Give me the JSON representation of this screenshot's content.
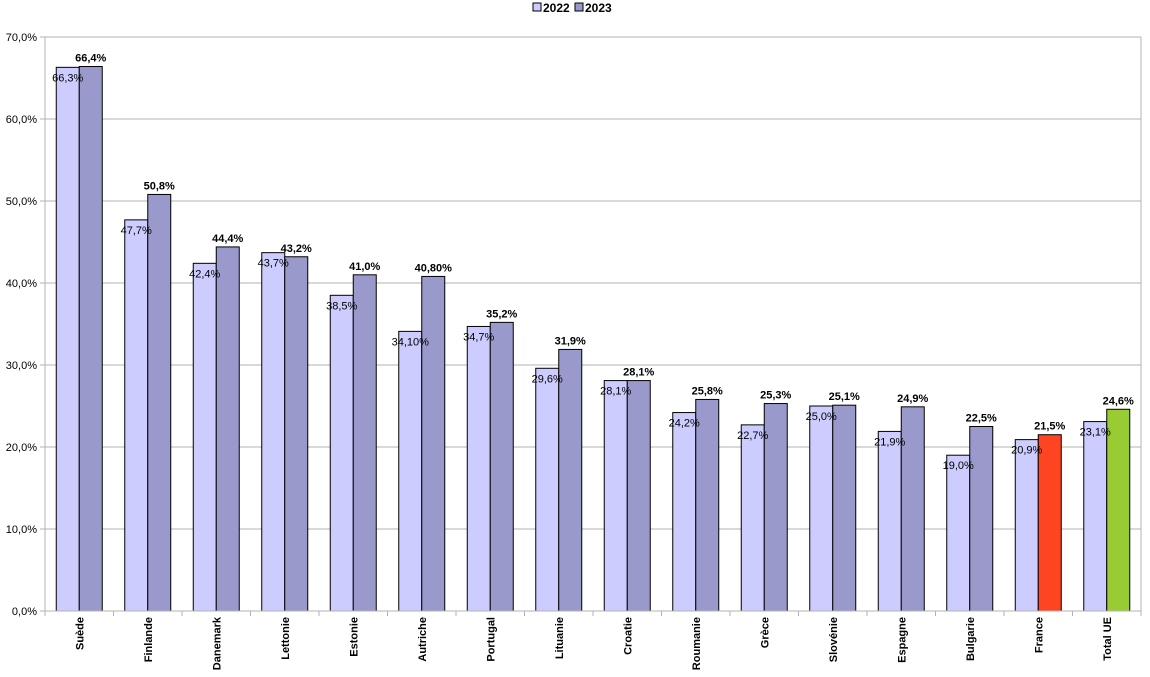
{
  "chart_data": {
    "type": "bar",
    "legend_position": "top-center",
    "grid": true,
    "ylim": [
      0,
      70
    ],
    "yticks": [
      "0,0%",
      "10,0%",
      "20,0%",
      "30,0%",
      "40,0%",
      "50,0%",
      "60,0%",
      "70,0%"
    ],
    "categories": [
      "Suède",
      "Finlande",
      "Danemark",
      "Lettonie",
      "Estonie",
      "Autriche",
      "Portugal",
      "Lituanie",
      "Croatie",
      "Roumanie",
      "Grèce",
      "Slovénie",
      "Espagne",
      "Bulgarie",
      "France",
      "Total UE"
    ],
    "series": [
      {
        "name": "2022",
        "color": "#ccccff",
        "values": [
          66.3,
          47.7,
          42.4,
          43.7,
          38.5,
          34.1,
          34.7,
          29.6,
          28.1,
          24.2,
          22.7,
          25.0,
          21.9,
          19.0,
          20.9,
          23.1
        ],
        "labels": [
          "66,3%",
          "47,7%",
          "42,4%",
          "43,7%",
          "38,5%",
          "34,10%",
          "34,7%",
          "29,6%",
          "28,1%",
          "24,2%",
          "22,7%",
          "25,0%",
          "21,9%",
          "19,0%",
          "20,9%",
          "23,1%"
        ]
      },
      {
        "name": "2023",
        "color": "#9999cc",
        "values": [
          66.4,
          50.8,
          44.4,
          43.2,
          41.0,
          40.8,
          35.2,
          31.9,
          28.1,
          25.8,
          25.3,
          25.1,
          24.9,
          22.5,
          21.5,
          24.6
        ],
        "labels": [
          "66,4%",
          "50,8%",
          "44,4%",
          "43,2%",
          "41,0%",
          "40,80%",
          "35,2%",
          "31,9%",
          "28,1%",
          "25,8%",
          "25,3%",
          "25,1%",
          "24,9%",
          "22,5%",
          "21,5%",
          "24,6%"
        ],
        "highlight_colors": {
          "France": "#ff4422",
          "Total UE": "#99cc33"
        }
      }
    ]
  }
}
